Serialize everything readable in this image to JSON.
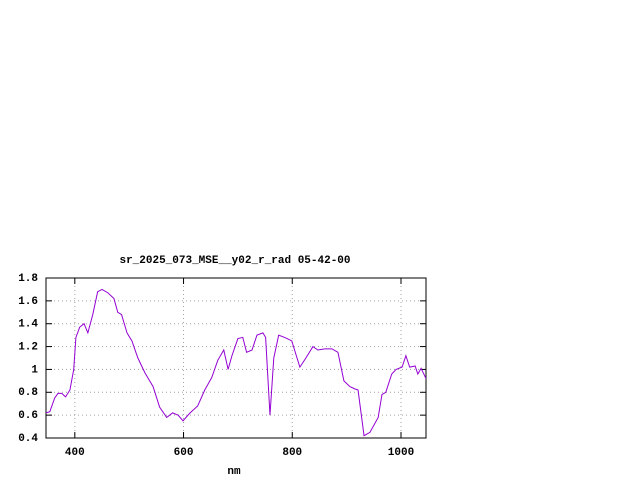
{
  "chart_data": {
    "type": "line",
    "title": "sr_2025_073_MSE__y02_r_rad 05-42-00",
    "x_label": "nm",
    "x": [
      347,
      354,
      363,
      369,
      376,
      383,
      391,
      398,
      402,
      409,
      417,
      424,
      433,
      442,
      450,
      461,
      472,
      479,
      486,
      496,
      505,
      516,
      529,
      544,
      556,
      569,
      580,
      590,
      599,
      612,
      626,
      639,
      652,
      663,
      674,
      682,
      689,
      700,
      709,
      716,
      726,
      735,
      746,
      751,
      759,
      766,
      775,
      786,
      799,
      814,
      825,
      838,
      847,
      860,
      873,
      884,
      895,
      906,
      915,
      921,
      932,
      943,
      958,
      965,
      972,
      983,
      991,
      1002,
      1009,
      1016,
      1026,
      1031,
      1037,
      1046
    ],
    "series": [
      {
        "color": "#9400d3",
        "values": [
          0.62,
          0.63,
          0.75,
          0.79,
          0.79,
          0.76,
          0.82,
          1.0,
          1.28,
          1.37,
          1.4,
          1.32,
          1.48,
          1.68,
          1.7,
          1.67,
          1.62,
          1.5,
          1.48,
          1.32,
          1.25,
          1.1,
          0.97,
          0.85,
          0.67,
          0.58,
          0.62,
          0.6,
          0.55,
          0.62,
          0.68,
          0.82,
          0.93,
          1.08,
          1.17,
          1.0,
          1.12,
          1.27,
          1.28,
          1.15,
          1.17,
          1.3,
          1.32,
          1.28,
          0.6,
          1.1,
          1.3,
          1.28,
          1.25,
          1.02,
          1.1,
          1.2,
          1.17,
          1.18,
          1.18,
          1.15,
          0.9,
          0.85,
          0.83,
          0.82,
          0.42,
          0.45,
          0.58,
          0.78,
          0.8,
          0.96,
          1.0,
          1.02,
          1.12,
          1.02,
          1.03,
          0.96,
          1.01,
          0.92
        ]
      }
    ],
    "xlim": [
      347,
      1046
    ],
    "xticks": [
      400,
      600,
      800,
      1000
    ],
    "ylim": [
      0.4,
      1.8
    ],
    "yticks": [
      0.4,
      0.6,
      0.8,
      1,
      1.2,
      1.4,
      1.6,
      1.8
    ],
    "grid": true
  }
}
